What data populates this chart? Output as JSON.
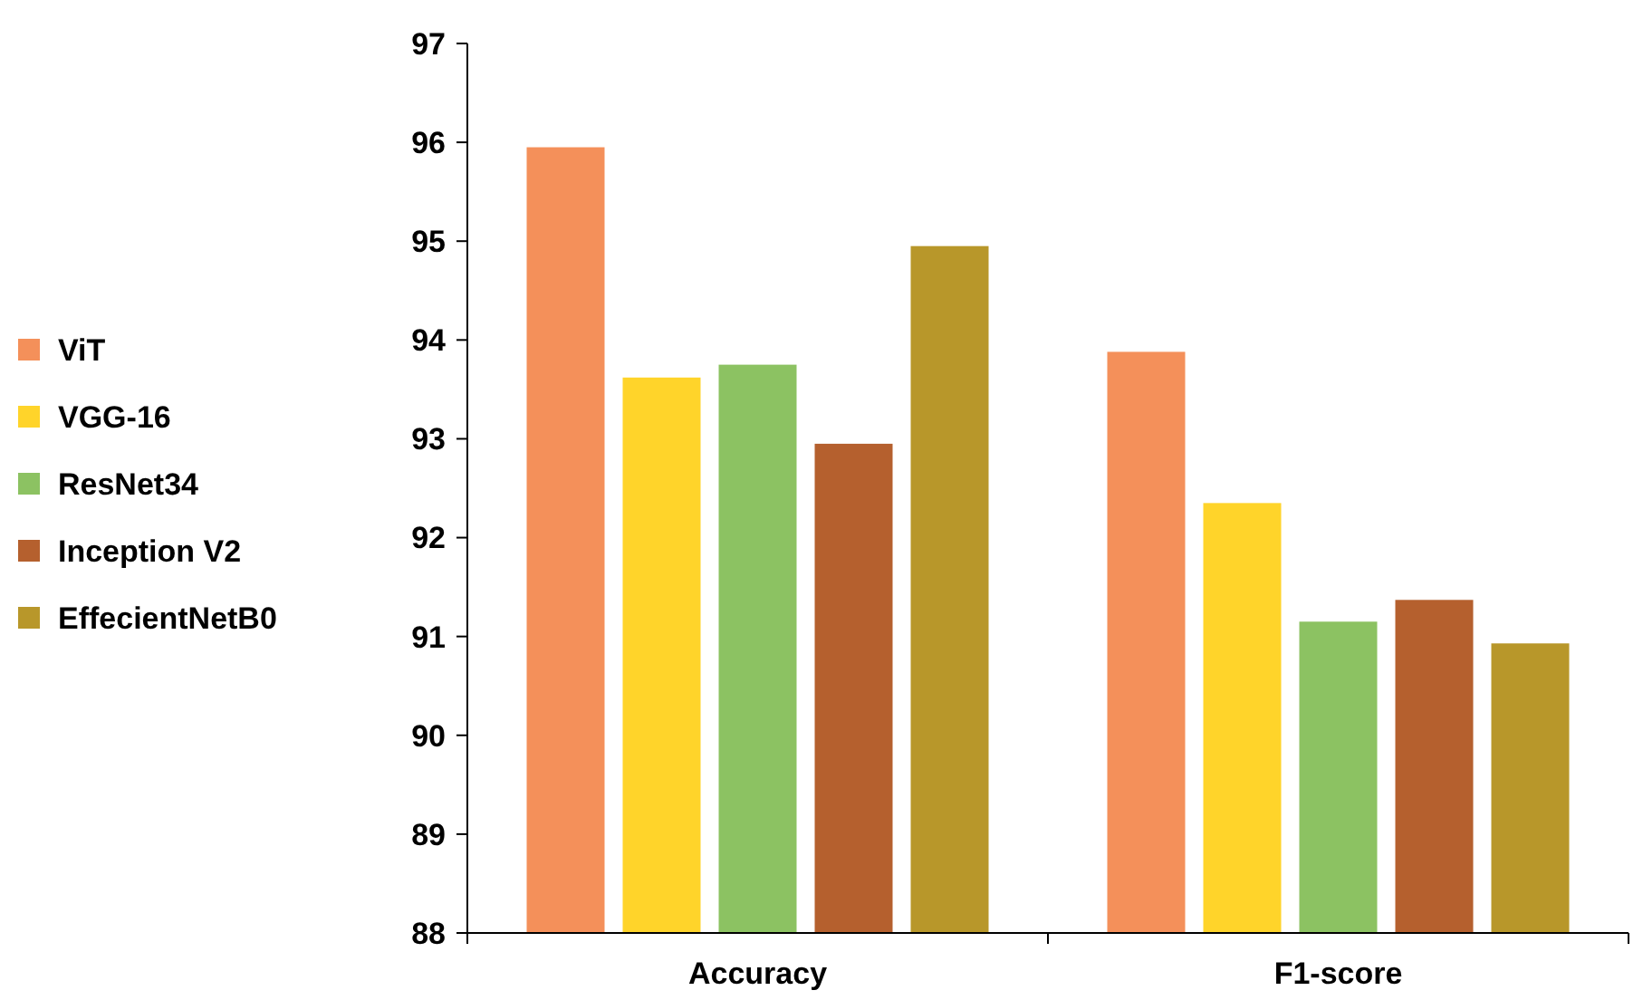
{
  "chart_data": {
    "type": "bar",
    "categories": [
      "Accuracy",
      "F1-score"
    ],
    "series": [
      {
        "name": "ViT",
        "color": "#f4905a",
        "values": [
          95.95,
          93.88
        ]
      },
      {
        "name": "VGG-16",
        "color": "#ffd42a",
        "values": [
          93.62,
          92.35
        ]
      },
      {
        "name": "ResNet34",
        "color": "#8cc262",
        "values": [
          93.75,
          91.15
        ]
      },
      {
        "name": "Inception V2",
        "color": "#b5602e",
        "values": [
          92.95,
          91.37
        ]
      },
      {
        "name": "EffecientNetB0",
        "color": "#b8972a",
        "values": [
          94.95,
          90.93
        ]
      }
    ],
    "ylim": [
      88,
      97
    ],
    "yticks": [
      88,
      89,
      90,
      91,
      92,
      93,
      94,
      95,
      96,
      97
    ],
    "grid": false,
    "legend": "left"
  }
}
